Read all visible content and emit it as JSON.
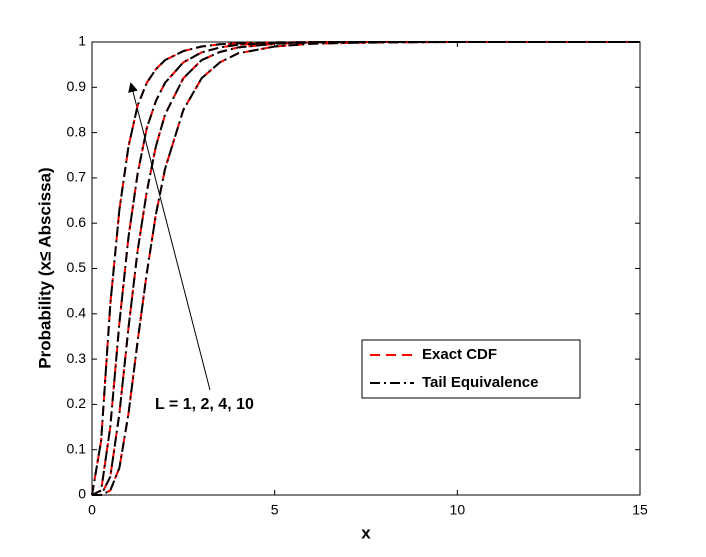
{
  "chart_data": {
    "type": "line",
    "xlabel": "x",
    "ylabel": "Probability (x≤ Abscissa)",
    "annotation": "L = 1, 2, 4, 10",
    "x": [
      0,
      0.25,
      0.5,
      0.75,
      1,
      1.25,
      1.5,
      1.75,
      2,
      2.5,
      3,
      3.5,
      4,
      5,
      6,
      7,
      8,
      10,
      15
    ],
    "series": [
      {
        "name": "Exact CDF",
        "color": "#ff0000",
        "dash": "10,6",
        "values": [
          [
            0,
            0,
            0.01,
            0.06,
            0.18,
            0.34,
            0.49,
            0.62,
            0.72,
            0.85,
            0.92,
            0.955,
            0.975,
            0.99,
            0.996,
            0.998,
            0.999,
            1,
            1
          ],
          [
            0,
            0,
            0.04,
            0.18,
            0.37,
            0.54,
            0.67,
            0.77,
            0.84,
            0.92,
            0.96,
            0.978,
            0.988,
            0.996,
            0.999,
            1,
            1,
            1,
            1
          ],
          [
            0,
            0.01,
            0.15,
            0.38,
            0.57,
            0.71,
            0.81,
            0.87,
            0.91,
            0.955,
            0.977,
            0.988,
            0.994,
            0.998,
            0.999,
            1,
            1,
            1,
            1
          ],
          [
            0,
            0.12,
            0.42,
            0.63,
            0.77,
            0.86,
            0.91,
            0.94,
            0.96,
            0.98,
            0.99,
            0.995,
            0.997,
            0.999,
            1,
            1,
            1,
            1,
            1
          ]
        ]
      },
      {
        "name": "Tail Equivalence",
        "color": "#000000",
        "dash": "10,4,2,4",
        "values": [
          [
            0,
            0,
            0.01,
            0.06,
            0.18,
            0.34,
            0.49,
            0.62,
            0.72,
            0.85,
            0.92,
            0.955,
            0.975,
            0.99,
            0.996,
            0.998,
            0.999,
            1,
            1
          ],
          [
            0,
            0,
            0.04,
            0.18,
            0.37,
            0.54,
            0.67,
            0.77,
            0.84,
            0.92,
            0.96,
            0.978,
            0.988,
            0.996,
            0.999,
            1,
            1,
            1,
            1
          ],
          [
            0,
            0.01,
            0.15,
            0.38,
            0.57,
            0.71,
            0.81,
            0.87,
            0.91,
            0.955,
            0.977,
            0.988,
            0.994,
            0.998,
            0.999,
            1,
            1,
            1,
            1
          ],
          [
            0,
            0.12,
            0.42,
            0.63,
            0.77,
            0.86,
            0.91,
            0.94,
            0.96,
            0.98,
            0.99,
            0.995,
            0.997,
            0.999,
            1,
            1,
            1,
            1,
            1
          ]
        ]
      }
    ],
    "xlim": [
      0,
      15
    ],
    "xticks": [
      0,
      5,
      10,
      15
    ],
    "ylim": [
      0,
      1
    ],
    "yticks": [
      0,
      0.1,
      0.2,
      0.3,
      0.4,
      0.5,
      0.6,
      0.7,
      0.8,
      0.9,
      1
    ],
    "grid": false,
    "legend": "center-right"
  }
}
